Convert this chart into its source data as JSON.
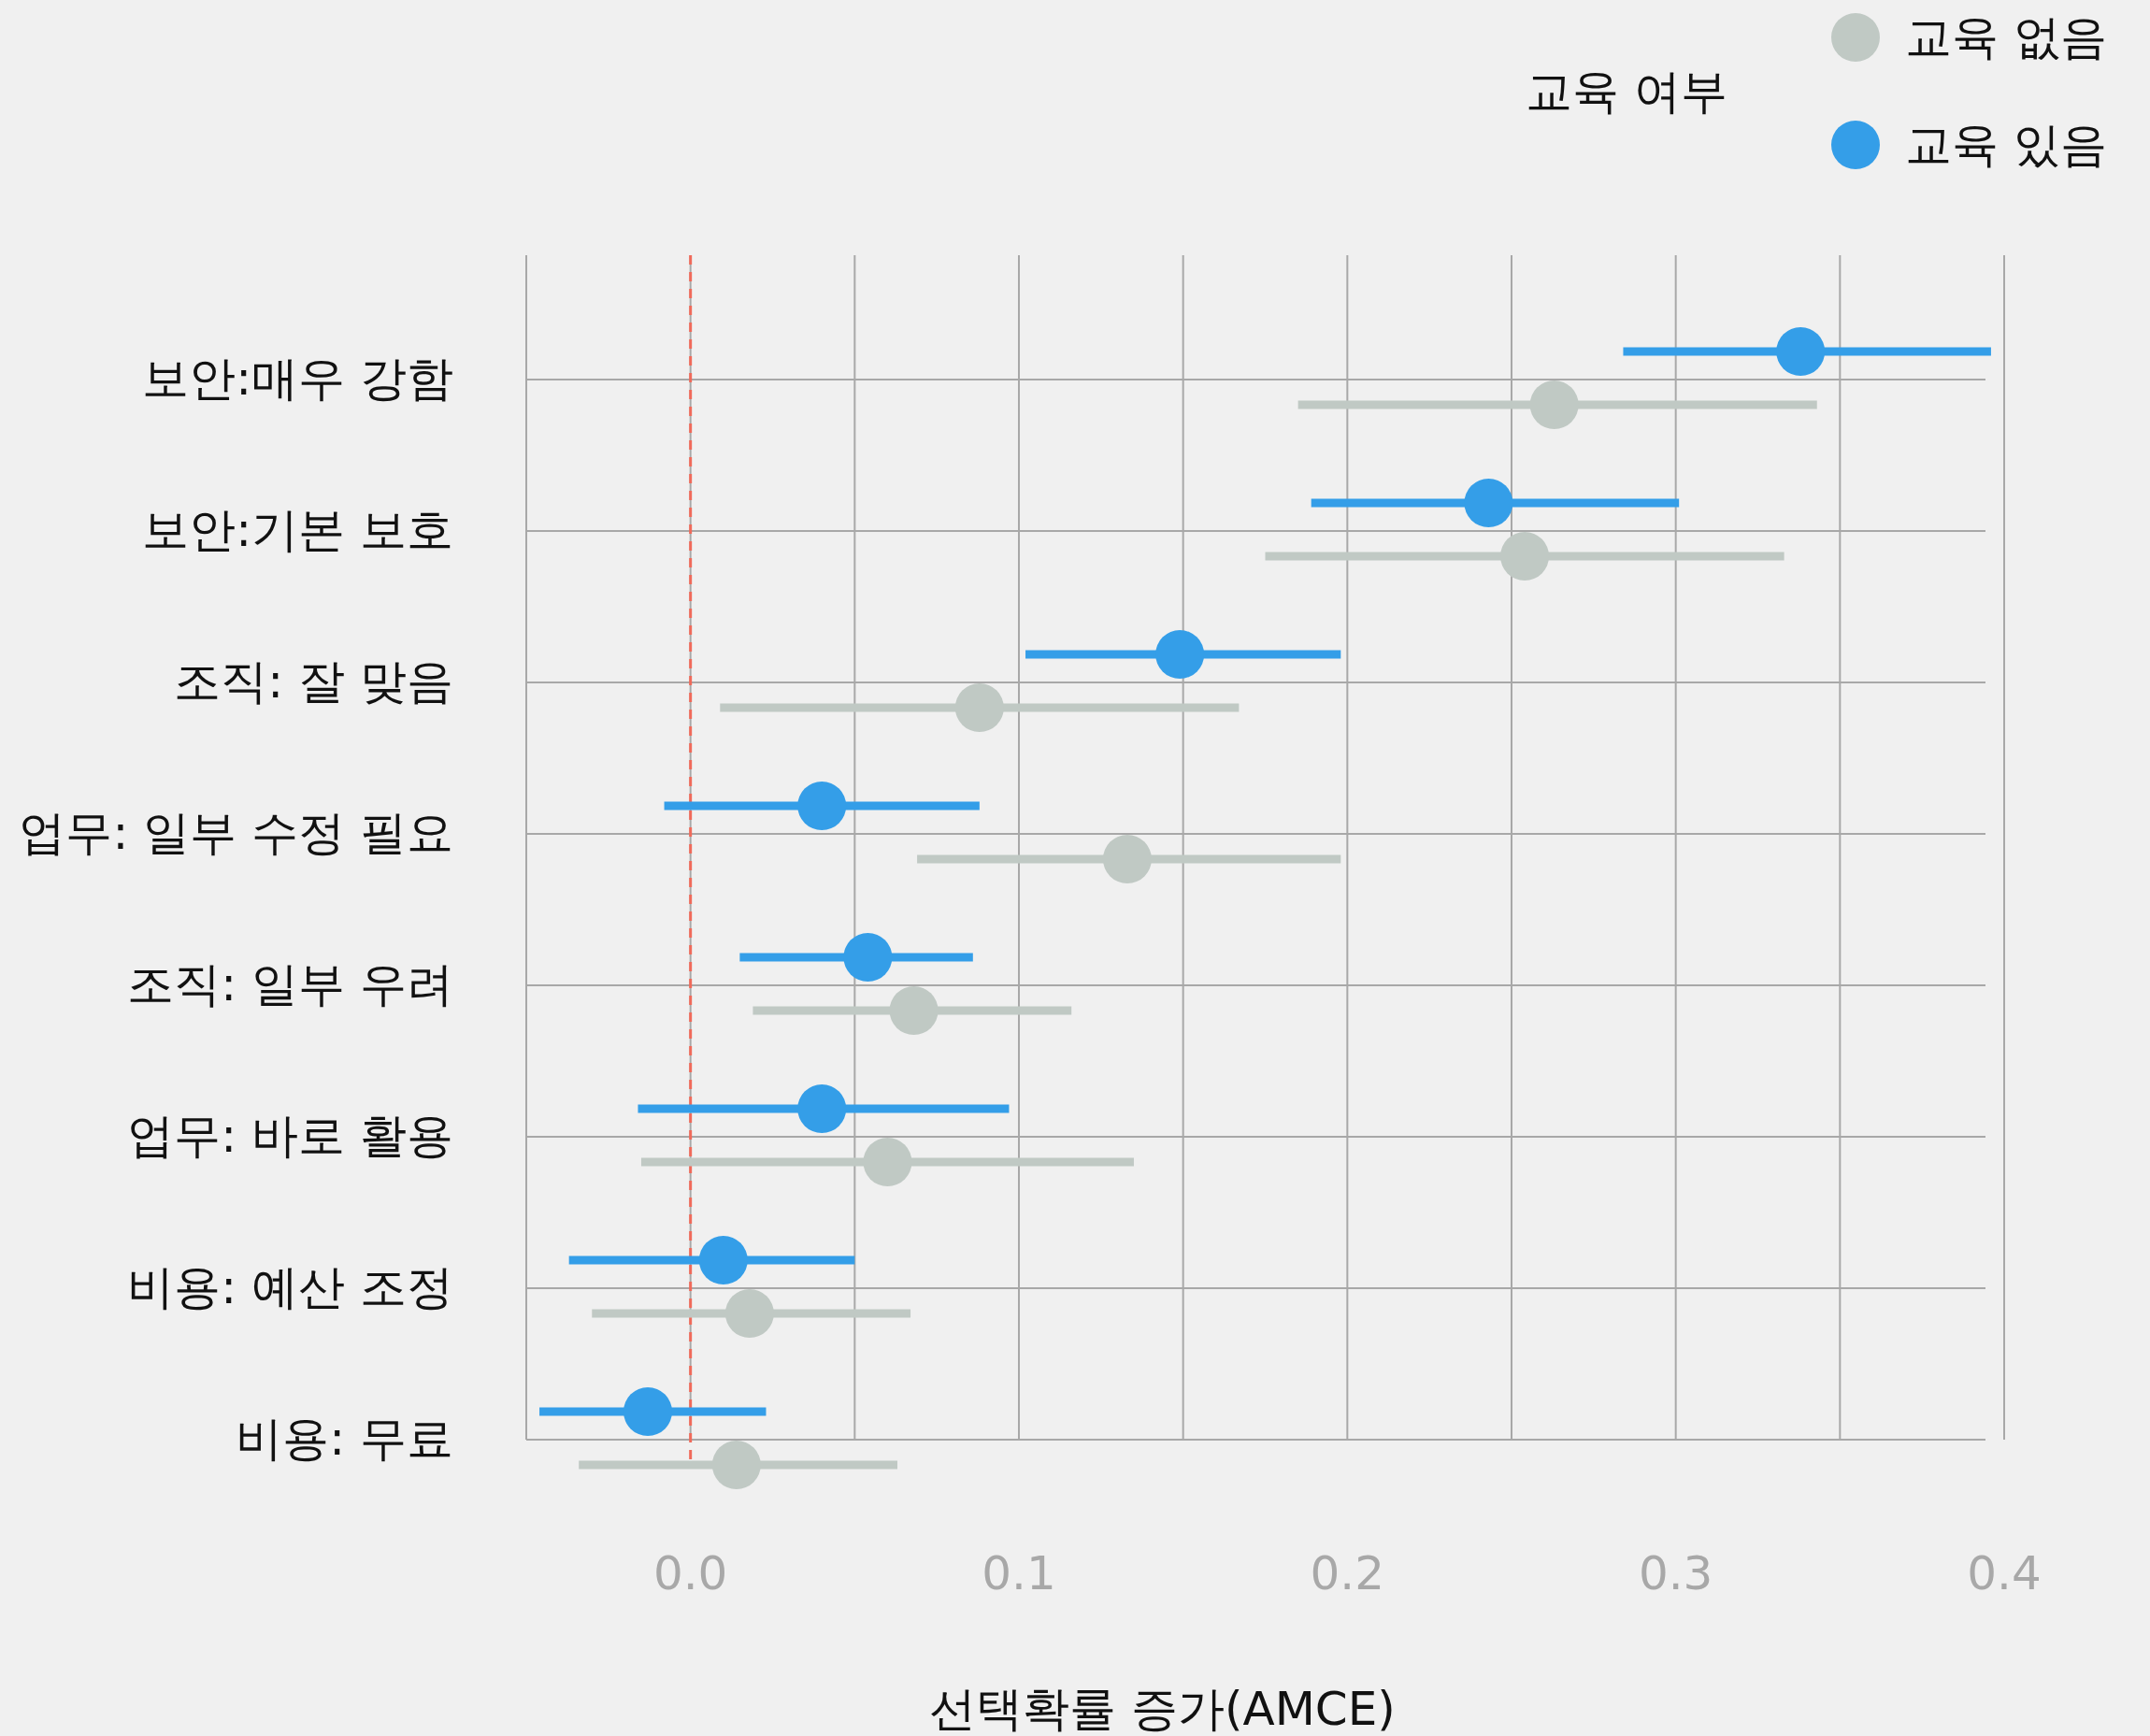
{
  "chart_data": {
    "type": "scatter",
    "orientation": "horizontal",
    "xlabel": "선택확률 증가(AMCE)",
    "legend_title": "교육 여부",
    "legend": "top right",
    "grid": true,
    "marker": "circle",
    "categories": [
      "보안:매우 강함",
      "보안:기본 보호",
      "조직: 잘 맞음",
      "업무: 일부 수정 필요",
      "조직: 일부 우려",
      "업무: 바로 활용",
      "비용: 예산 조정",
      "비용: 무료"
    ],
    "xlim": [
      -0.05,
      0.4
    ],
    "xticks": [
      {
        "value": -0.05,
        "label": null
      },
      {
        "value": 0,
        "label": "0.0"
      },
      {
        "value": 0.05,
        "label": null
      },
      0.1,
      {
        "value": 0.15,
        "label": null
      },
      0.2,
      {
        "value": 0.25,
        "label": null
      },
      0.3,
      {
        "value": 0.35,
        "label": null
      },
      0.4
    ],
    "series": [
      {
        "name": "교육 없음",
        "color": "#c0c9c4",
        "values": [
          0.263,
          0.254,
          0.088,
          0.133,
          0.068,
          0.06,
          0.018,
          0.014
        ],
        "errors": [
          [
            0.185,
            0.343
          ],
          [
            0.175,
            0.333
          ],
          [
            0.009,
            0.167
          ],
          [
            0.069,
            0.198
          ],
          [
            0.019,
            0.116
          ],
          [
            -0.015,
            0.135
          ],
          [
            -0.03,
            0.067
          ],
          [
            -0.034,
            0.063
          ]
        ]
      },
      {
        "name": "교육 있음",
        "color": "#349ee8",
        "values": [
          0.338,
          0.243,
          0.149,
          0.04,
          0.054,
          0.04,
          0.01,
          -0.013
        ],
        "errors": [
          [
            0.284,
            0.396
          ],
          [
            0.189,
            0.301
          ],
          [
            0.102,
            0.198
          ],
          [
            -0.008,
            0.088
          ],
          [
            0.015,
            0.086
          ],
          [
            -0.016,
            0.097
          ],
          [
            -0.037,
            0.05
          ],
          [
            -0.046,
            0.023
          ]
        ]
      }
    ],
    "ref_lines": [
      {
        "axis": "x",
        "value": 0,
        "label": null,
        "color": "#f06a5a",
        "line_style": "dashed"
      }
    ]
  }
}
